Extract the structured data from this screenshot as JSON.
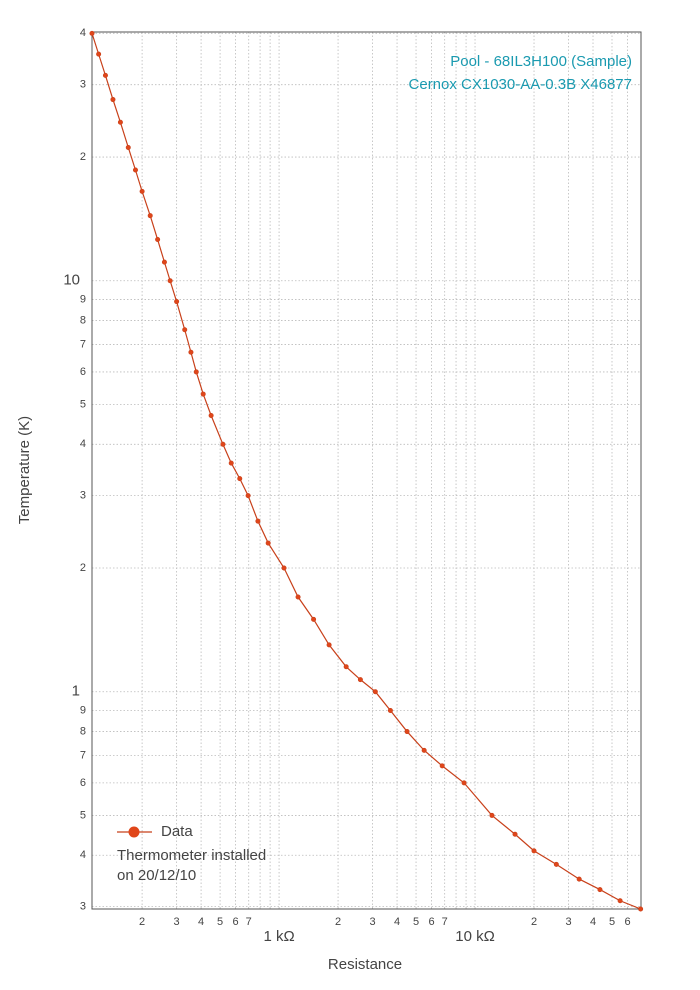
{
  "chart_data": {
    "type": "line",
    "title": "Pool - 68IL3H100 (Sample)",
    "subtitle": "Cernox CX1030-AA-0.3B X46877",
    "x_label": "Resistance",
    "y_label": "Temperature (K)",
    "annotation": [
      "Thermometer installed",
      "on 20/12/10"
    ],
    "xscale": "log",
    "yscale": "log",
    "grid": true,
    "legend": "lower left",
    "xlim": [
      111,
      70300
    ],
    "ylim": [
      0.296,
      40.3
    ],
    "xticks": [
      {
        "value": 200,
        "label": "2"
      },
      {
        "value": 300,
        "label": "3"
      },
      {
        "value": 400,
        "label": "4"
      },
      {
        "value": 500,
        "label": "5"
      },
      {
        "value": 600,
        "label": "6"
      },
      {
        "value": 700,
        "label": "7"
      },
      {
        "value": 1000,
        "label": "1 kΩ"
      },
      {
        "value": 2000,
        "label": "2"
      },
      {
        "value": 3000,
        "label": "3"
      },
      {
        "value": 4000,
        "label": "4"
      },
      {
        "value": 5000,
        "label": "5"
      },
      {
        "value": 6000,
        "label": "6"
      },
      {
        "value": 7000,
        "label": "7"
      },
      {
        "value": 10000,
        "label": "10 kΩ"
      },
      {
        "value": 20000,
        "label": "2"
      },
      {
        "value": 30000,
        "label": "3"
      },
      {
        "value": 40000,
        "label": "4"
      },
      {
        "value": 50000,
        "label": "5"
      },
      {
        "value": 60000,
        "label": "6"
      }
    ],
    "xminorticks": [
      800,
      900,
      8000,
      9000
    ],
    "yticks": [
      {
        "value": 0.3,
        "label": "3"
      },
      {
        "value": 0.4,
        "label": "4"
      },
      {
        "value": 0.5,
        "label": "5"
      },
      {
        "value": 0.6,
        "label": "6"
      },
      {
        "value": 0.7,
        "label": "7"
      },
      {
        "value": 0.8,
        "label": "8"
      },
      {
        "value": 0.9,
        "label": "9"
      },
      1,
      2,
      3,
      4,
      5,
      6,
      7,
      8,
      9,
      10,
      {
        "value": 20,
        "label": "2"
      },
      {
        "value": 30,
        "label": "3"
      },
      {
        "value": 40,
        "label": "4"
      }
    ],
    "series": [
      {
        "name": "Data",
        "color": "#c8401a",
        "marker_color": "#e0461a",
        "x": [
          111,
          120,
          130,
          142,
          155,
          170,
          185,
          200,
          220,
          240,
          260,
          278,
          300,
          330,
          355,
          378,
          410,
          450,
          517,
          570,
          630,
          695,
          780,
          880,
          1060,
          1250,
          1500,
          1800,
          2200,
          2600,
          3100,
          3700,
          4500,
          5500,
          6800,
          8790,
          12200,
          16000,
          20000,
          26000,
          34000,
          43400,
          55000,
          70000
        ],
        "values": [
          40,
          35.6,
          31.6,
          27.6,
          24.3,
          21.1,
          18.6,
          16.5,
          14.4,
          12.6,
          11.1,
          10,
          8.9,
          7.6,
          6.7,
          6,
          5.3,
          4.7,
          4,
          3.6,
          3.3,
          3,
          2.6,
          2.3,
          2,
          1.7,
          1.5,
          1.3,
          1.15,
          1.07,
          1,
          0.9,
          0.8,
          0.72,
          0.66,
          0.6,
          0.5,
          0.45,
          0.41,
          0.38,
          0.35,
          0.33,
          0.31,
          0.296
        ]
      }
    ]
  }
}
